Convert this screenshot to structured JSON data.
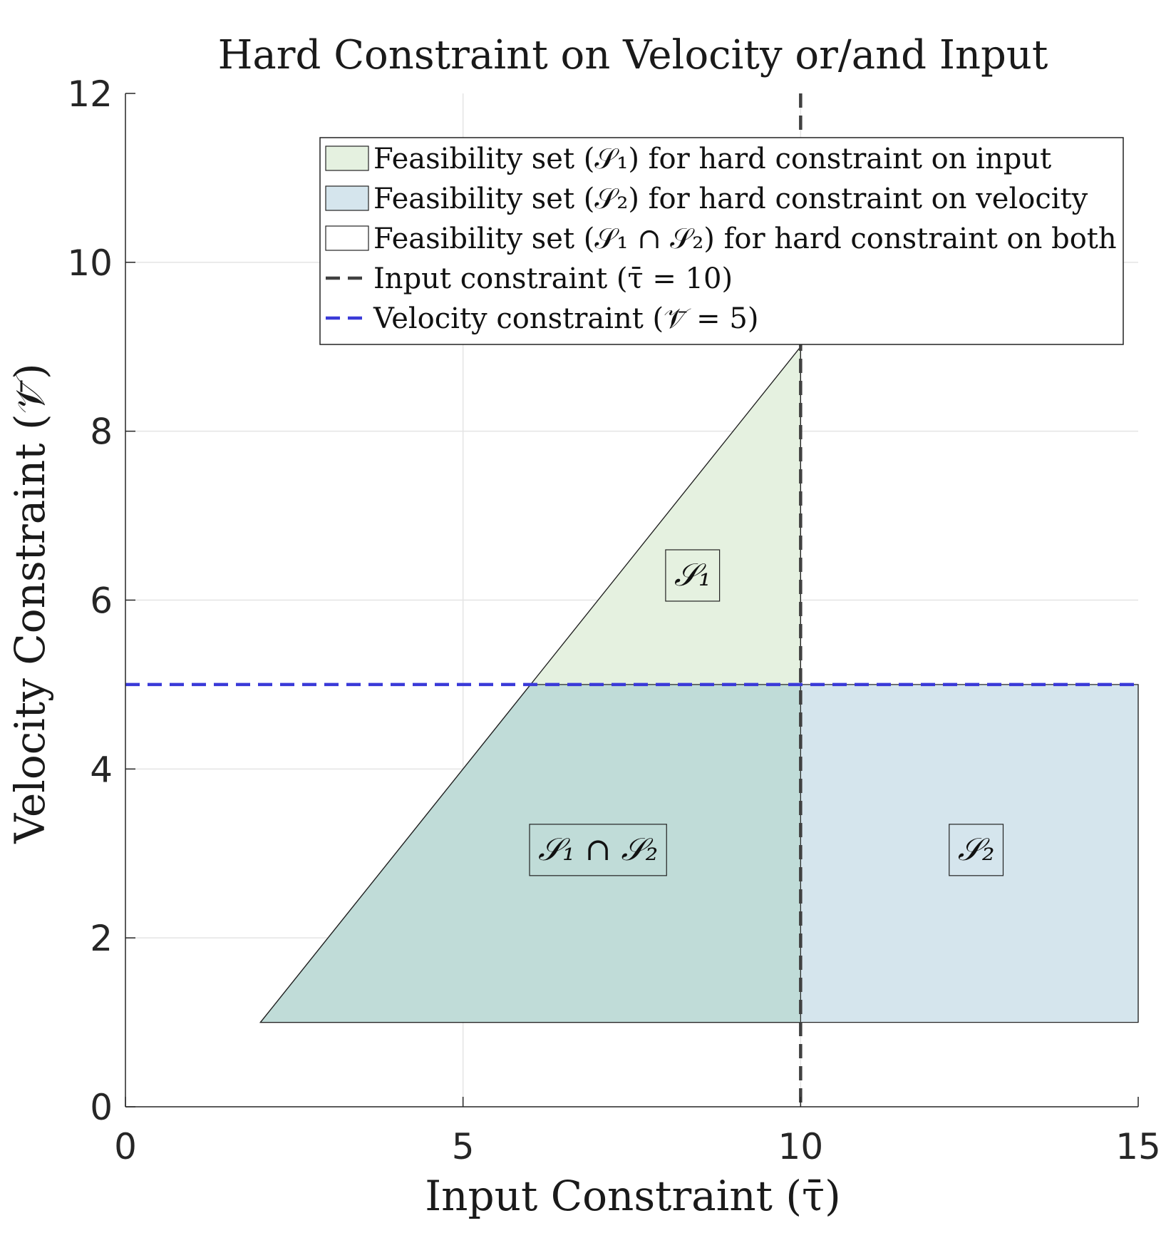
{
  "chart_data": {
    "type": "area",
    "title": "Hard Constraint on Velocity or/and Input",
    "xlabel": "Input Constraint (τ̄)",
    "ylabel": "Velocity Constraint (𝒱̄)",
    "xlim": [
      0,
      15
    ],
    "ylim": [
      0,
      12
    ],
    "xticks": [
      0,
      5,
      10,
      15
    ],
    "yticks": [
      0,
      2,
      4,
      6,
      8,
      10,
      12
    ],
    "grid": true,
    "legend_position": "top-right",
    "regions": [
      {
        "name": "S1",
        "legend": "Feasibility set (𝒮₁) for hard constraint on input",
        "color": "#e5f1e0",
        "polygon": [
          [
            2,
            1
          ],
          [
            10,
            1
          ],
          [
            10,
            9
          ]
        ]
      },
      {
        "name": "S2",
        "legend": "Feasibility set (𝒮₂) for hard constraint on velocity",
        "color": "#d5e5ed",
        "polygon": [
          [
            2,
            1
          ],
          [
            15,
            1
          ],
          [
            15,
            5
          ],
          [
            6,
            5
          ]
        ]
      },
      {
        "name": "S1∩S2",
        "legend": "Feasibility set (𝒮₁ ∩ 𝒮₂) for hard constraint on both",
        "color": "#c0dcd8",
        "polygon": [
          [
            2,
            1
          ],
          [
            10,
            1
          ],
          [
            10,
            5
          ],
          [
            6,
            5
          ]
        ]
      }
    ],
    "lines": [
      {
        "name": "input-constraint",
        "legend": "Input constraint (τ̄ = 10)",
        "orientation": "vertical",
        "value": 10,
        "color": "#404040",
        "style": "dashed"
      },
      {
        "name": "velocity-constraint",
        "legend": "Velocity constraint (𝒱̄ = 5)",
        "orientation": "horizontal",
        "value": 5,
        "color": "#3a3ad8",
        "style": "dashed"
      }
    ],
    "annotations": [
      {
        "text": "𝒮₁",
        "x": 8.4,
        "y": 6.3
      },
      {
        "text": "𝒮₁ ∩ 𝒮₂",
        "x": 7.0,
        "y": 3.05
      },
      {
        "text": "𝒮₂",
        "x": 12.6,
        "y": 3.05
      }
    ]
  }
}
